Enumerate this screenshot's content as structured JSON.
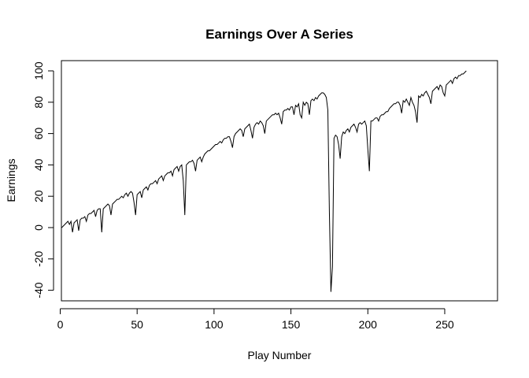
{
  "chart_data": {
    "type": "line",
    "title": "Earnings Over A Series",
    "xlabel": "Play Number",
    "ylabel": "Earnings",
    "xlim": [
      0,
      270
    ],
    "ylim": [
      -45,
      105
    ],
    "x_ticks": [
      0,
      50,
      100,
      150,
      200,
      250
    ],
    "y_ticks": [
      -40,
      -20,
      0,
      20,
      40,
      60,
      80,
      100
    ],
    "x_tick_labels": [
      "0",
      "50",
      "100",
      "150",
      "200",
      "250"
    ],
    "y_tick_labels": [
      "-40",
      "-20",
      "0",
      "20",
      "40",
      "60",
      "80",
      "100"
    ],
    "grid": false,
    "line_color": "#000000",
    "series": [
      {
        "points": [
          [
            1,
            0
          ],
          [
            2,
            1
          ],
          [
            3,
            2
          ],
          [
            4,
            3
          ],
          [
            5,
            4
          ],
          [
            6,
            2
          ],
          [
            7,
            4
          ],
          [
            8,
            -3
          ],
          [
            9,
            3
          ],
          [
            10,
            4
          ],
          [
            11,
            5
          ],
          [
            12,
            -2
          ],
          [
            13,
            5
          ],
          [
            14,
            6
          ],
          [
            15,
            6
          ],
          [
            16,
            7
          ],
          [
            17,
            4
          ],
          [
            18,
            8
          ],
          [
            19,
            9
          ],
          [
            20,
            9
          ],
          [
            21,
            10
          ],
          [
            22,
            11
          ],
          [
            23,
            7
          ],
          [
            24,
            11
          ],
          [
            25,
            12
          ],
          [
            26,
            12
          ],
          [
            27,
            -3
          ],
          [
            28,
            12
          ],
          [
            29,
            13
          ],
          [
            30,
            14
          ],
          [
            31,
            15
          ],
          [
            32,
            14
          ],
          [
            33,
            8
          ],
          [
            34,
            15
          ],
          [
            35,
            16
          ],
          [
            36,
            17
          ],
          [
            37,
            18
          ],
          [
            38,
            18
          ],
          [
            39,
            19
          ],
          [
            40,
            20
          ],
          [
            41,
            19
          ],
          [
            42,
            21
          ],
          [
            43,
            22
          ],
          [
            44,
            20
          ],
          [
            45,
            22
          ],
          [
            46,
            23
          ],
          [
            47,
            22
          ],
          [
            48,
            16
          ],
          [
            49,
            8
          ],
          [
            50,
            21
          ],
          [
            51,
            22
          ],
          [
            52,
            23
          ],
          [
            53,
            19
          ],
          [
            54,
            24
          ],
          [
            55,
            25
          ],
          [
            56,
            26
          ],
          [
            57,
            24
          ],
          [
            58,
            27
          ],
          [
            59,
            28
          ],
          [
            60,
            28
          ],
          [
            61,
            29
          ],
          [
            62,
            30
          ],
          [
            63,
            28
          ],
          [
            64,
            31
          ],
          [
            65,
            32
          ],
          [
            66,
            33
          ],
          [
            67,
            30
          ],
          [
            68,
            33
          ],
          [
            69,
            34
          ],
          [
            70,
            35
          ],
          [
            71,
            35
          ],
          [
            72,
            36
          ],
          [
            73,
            33
          ],
          [
            74,
            37
          ],
          [
            75,
            38
          ],
          [
            76,
            39
          ],
          [
            77,
            36
          ],
          [
            78,
            39
          ],
          [
            79,
            40
          ],
          [
            80,
            30
          ],
          [
            81,
            8
          ],
          [
            82,
            40
          ],
          [
            83,
            41
          ],
          [
            84,
            42
          ],
          [
            85,
            42
          ],
          [
            86,
            43
          ],
          [
            87,
            41
          ],
          [
            88,
            36
          ],
          [
            89,
            43
          ],
          [
            90,
            44
          ],
          [
            91,
            45
          ],
          [
            92,
            42
          ],
          [
            93,
            45
          ],
          [
            94,
            47
          ],
          [
            95,
            48
          ],
          [
            96,
            49
          ],
          [
            97,
            49
          ],
          [
            98,
            50
          ],
          [
            99,
            51
          ],
          [
            100,
            52
          ],
          [
            101,
            53
          ],
          [
            102,
            53
          ],
          [
            103,
            54
          ],
          [
            104,
            55
          ],
          [
            105,
            54
          ],
          [
            106,
            56
          ],
          [
            107,
            57
          ],
          [
            108,
            57
          ],
          [
            109,
            58
          ],
          [
            110,
            58
          ],
          [
            111,
            55
          ],
          [
            112,
            51
          ],
          [
            113,
            58
          ],
          [
            114,
            60
          ],
          [
            115,
            61
          ],
          [
            116,
            62
          ],
          [
            117,
            63
          ],
          [
            118,
            62
          ],
          [
            119,
            58
          ],
          [
            120,
            63
          ],
          [
            121,
            64
          ],
          [
            122,
            65
          ],
          [
            123,
            66
          ],
          [
            124,
            62
          ],
          [
            125,
            57
          ],
          [
            126,
            64
          ],
          [
            127,
            66
          ],
          [
            128,
            67
          ],
          [
            129,
            66
          ],
          [
            130,
            68
          ],
          [
            131,
            67
          ],
          [
            132,
            65
          ],
          [
            133,
            60
          ],
          [
            134,
            68
          ],
          [
            135,
            69
          ],
          [
            136,
            70
          ],
          [
            137,
            71
          ],
          [
            138,
            72
          ],
          [
            139,
            72
          ],
          [
            140,
            73
          ],
          [
            141,
            72
          ],
          [
            142,
            73
          ],
          [
            143,
            70
          ],
          [
            144,
            66
          ],
          [
            145,
            74
          ],
          [
            146,
            75
          ],
          [
            147,
            75
          ],
          [
            148,
            76
          ],
          [
            149,
            75
          ],
          [
            150,
            77
          ],
          [
            151,
            77
          ],
          [
            152,
            72
          ],
          [
            153,
            78
          ],
          [
            154,
            77
          ],
          [
            155,
            79
          ],
          [
            156,
            72
          ],
          [
            157,
            70
          ],
          [
            158,
            80
          ],
          [
            159,
            78
          ],
          [
            160,
            80
          ],
          [
            161,
            79
          ],
          [
            162,
            72
          ],
          [
            163,
            81
          ],
          [
            164,
            82
          ],
          [
            165,
            81
          ],
          [
            166,
            83
          ],
          [
            167,
            82
          ],
          [
            168,
            84
          ],
          [
            169,
            85
          ],
          [
            170,
            86
          ],
          [
            171,
            86
          ],
          [
            172,
            85
          ],
          [
            173,
            83
          ],
          [
            174,
            75
          ],
          [
            175,
            10
          ],
          [
            176,
            -41
          ],
          [
            177,
            -25
          ],
          [
            178,
            57
          ],
          [
            179,
            59
          ],
          [
            180,
            58
          ],
          [
            181,
            53
          ],
          [
            182,
            44
          ],
          [
            183,
            58
          ],
          [
            184,
            61
          ],
          [
            185,
            60
          ],
          [
            186,
            62
          ],
          [
            187,
            63
          ],
          [
            188,
            61
          ],
          [
            189,
            64
          ],
          [
            190,
            65
          ],
          [
            191,
            66
          ],
          [
            192,
            64
          ],
          [
            193,
            61
          ],
          [
            194,
            66
          ],
          [
            195,
            67
          ],
          [
            196,
            66
          ],
          [
            197,
            67
          ],
          [
            198,
            68
          ],
          [
            199,
            65
          ],
          [
            200,
            50
          ],
          [
            201,
            36
          ],
          [
            202,
            68
          ],
          [
            203,
            68
          ],
          [
            204,
            69
          ],
          [
            205,
            70
          ],
          [
            206,
            70
          ],
          [
            207,
            68
          ],
          [
            208,
            71
          ],
          [
            209,
            72
          ],
          [
            210,
            72
          ],
          [
            211,
            73
          ],
          [
            212,
            74
          ],
          [
            213,
            74
          ],
          [
            214,
            76
          ],
          [
            215,
            77
          ],
          [
            216,
            78
          ],
          [
            217,
            79
          ],
          [
            218,
            79
          ],
          [
            219,
            80
          ],
          [
            220,
            80
          ],
          [
            221,
            78
          ],
          [
            222,
            73
          ],
          [
            223,
            81
          ],
          [
            224,
            80
          ],
          [
            225,
            82
          ],
          [
            226,
            80
          ],
          [
            227,
            78
          ],
          [
            228,
            83
          ],
          [
            229,
            80
          ],
          [
            230,
            78
          ],
          [
            231,
            74
          ],
          [
            232,
            67
          ],
          [
            233,
            84
          ],
          [
            234,
            83
          ],
          [
            235,
            85
          ],
          [
            236,
            84
          ],
          [
            237,
            86
          ],
          [
            238,
            87
          ],
          [
            239,
            85
          ],
          [
            240,
            83
          ],
          [
            241,
            79
          ],
          [
            242,
            87
          ],
          [
            243,
            88
          ],
          [
            244,
            89
          ],
          [
            245,
            90
          ],
          [
            246,
            88
          ],
          [
            247,
            91
          ],
          [
            248,
            90
          ],
          [
            249,
            86
          ],
          [
            250,
            84
          ],
          [
            251,
            91
          ],
          [
            252,
            92
          ],
          [
            253,
            93
          ],
          [
            254,
            94
          ],
          [
            255,
            92
          ],
          [
            256,
            95
          ],
          [
            257,
            96
          ],
          [
            258,
            95
          ],
          [
            259,
            97
          ],
          [
            260,
            97
          ],
          [
            261,
            98
          ],
          [
            262,
            98
          ],
          [
            263,
            99
          ],
          [
            264,
            100
          ]
        ]
      }
    ]
  }
}
